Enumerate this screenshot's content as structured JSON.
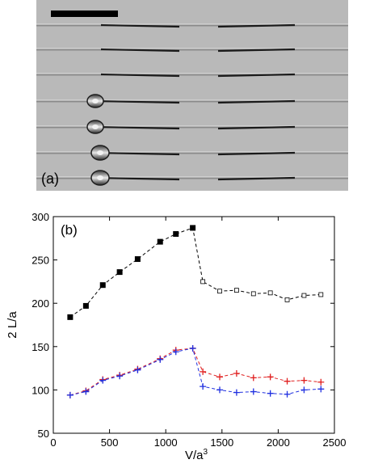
{
  "photo": {
    "panel_label": "(a)",
    "drop_rows": [
      false,
      false,
      false,
      true,
      true,
      true,
      true
    ]
  },
  "chart_data": {
    "type": "line",
    "panel_label": "(b)",
    "xlabel": "V/a",
    "xlabel_sup": "3",
    "ylabel": "2 L/a",
    "xlim": [
      0,
      2500
    ],
    "ylim": [
      50,
      300
    ],
    "xticks": [
      0,
      500,
      1000,
      1500,
      2000,
      2500
    ],
    "yticks": [
      50,
      100,
      150,
      200,
      250,
      300
    ],
    "grid": false,
    "series": [
      {
        "color": "#000000",
        "marker": "square",
        "filled_until_index": 7,
        "x": [
          150,
          290,
          440,
          590,
          750,
          950,
          1090,
          1240,
          1330,
          1480,
          1630,
          1780,
          1930,
          2080,
          2230,
          2380
        ],
        "y": [
          184,
          197,
          221,
          236,
          251,
          271,
          280,
          287,
          225,
          214,
          215,
          211,
          212,
          204,
          209,
          210
        ]
      },
      {
        "color": "#e02020",
        "marker": "plus",
        "x": [
          150,
          290,
          440,
          590,
          750,
          950,
          1090,
          1240,
          1330,
          1480,
          1630,
          1780,
          1930,
          2080,
          2230,
          2380
        ],
        "y": [
          94,
          99,
          112,
          117,
          124,
          136,
          146,
          148,
          121,
          115,
          119,
          114,
          115,
          110,
          111,
          109
        ]
      },
      {
        "color": "#2030e0",
        "marker": "plus",
        "x": [
          150,
          290,
          440,
          590,
          750,
          950,
          1090,
          1240,
          1330,
          1480,
          1630,
          1780,
          1930,
          2080,
          2230,
          2380
        ],
        "y": [
          94,
          98,
          111,
          116,
          123,
          135,
          144,
          148,
          104,
          100,
          97,
          98,
          96,
          95,
          100,
          101
        ]
      }
    ]
  }
}
